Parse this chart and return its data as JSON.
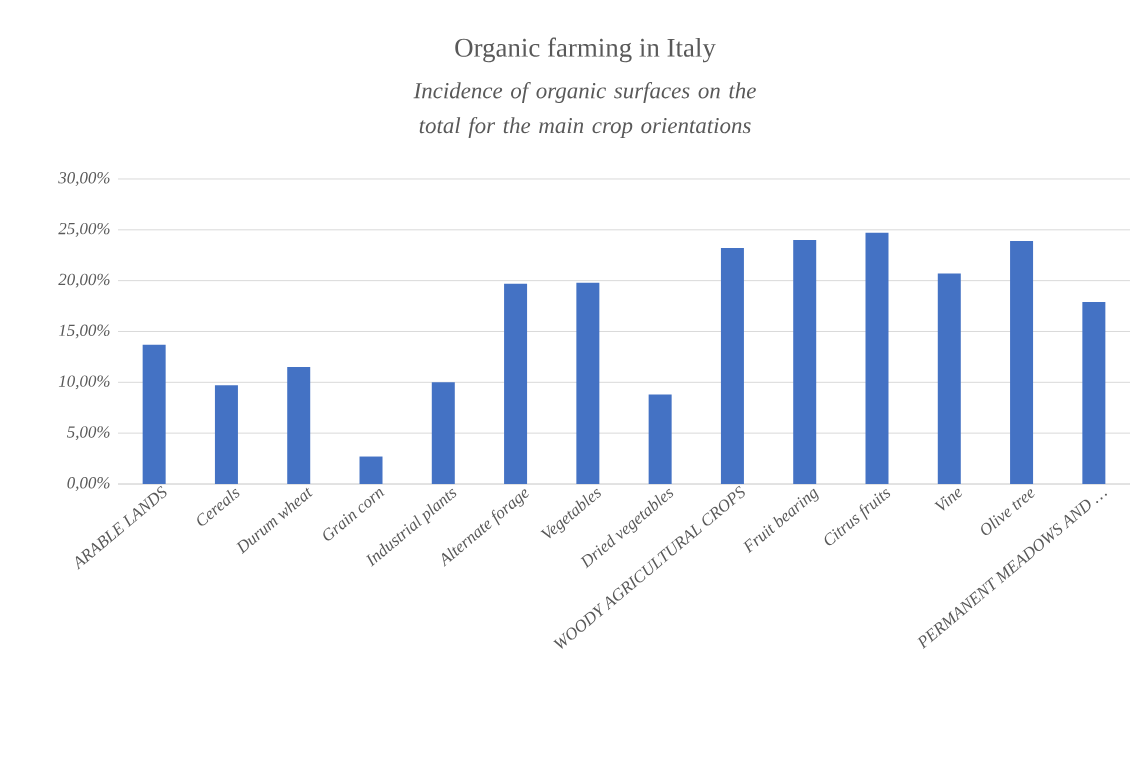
{
  "chart_data": {
    "type": "bar",
    "title": "Organic farming in Italy",
    "subtitle": "Incidence of organic surfaces on the total for the main crop orientations",
    "categories": [
      "ARABLE LANDS",
      "Cereals",
      "Durum wheat",
      "Grain corn",
      "Industrial plants",
      "Alternate forage",
      "Vegetables",
      "Dried vegetables",
      "WOODY AGRICULTURAL CROPS",
      "Fruit bearing",
      "Citrus fruits",
      "Vine",
      "Olive tree",
      "PERMANENT MEADOWS AND …"
    ],
    "values": [
      13.7,
      9.7,
      11.5,
      2.7,
      10.0,
      19.7,
      19.8,
      8.8,
      23.2,
      24.0,
      24.7,
      20.7,
      23.9,
      17.9
    ],
    "color": "#4472c4",
    "ylim": [
      0,
      30
    ],
    "yticks": [
      {
        "value": 0,
        "label": "0,00%"
      },
      {
        "value": 5,
        "label": "5,00%"
      },
      {
        "value": 10,
        "label": "10,00%"
      },
      {
        "value": 15,
        "label": "15,00%"
      },
      {
        "value": 20,
        "label": "20,00%"
      },
      {
        "value": 25,
        "label": "25,00%"
      },
      {
        "value": 30,
        "label": "30,00%"
      }
    ],
    "grid": "y"
  }
}
